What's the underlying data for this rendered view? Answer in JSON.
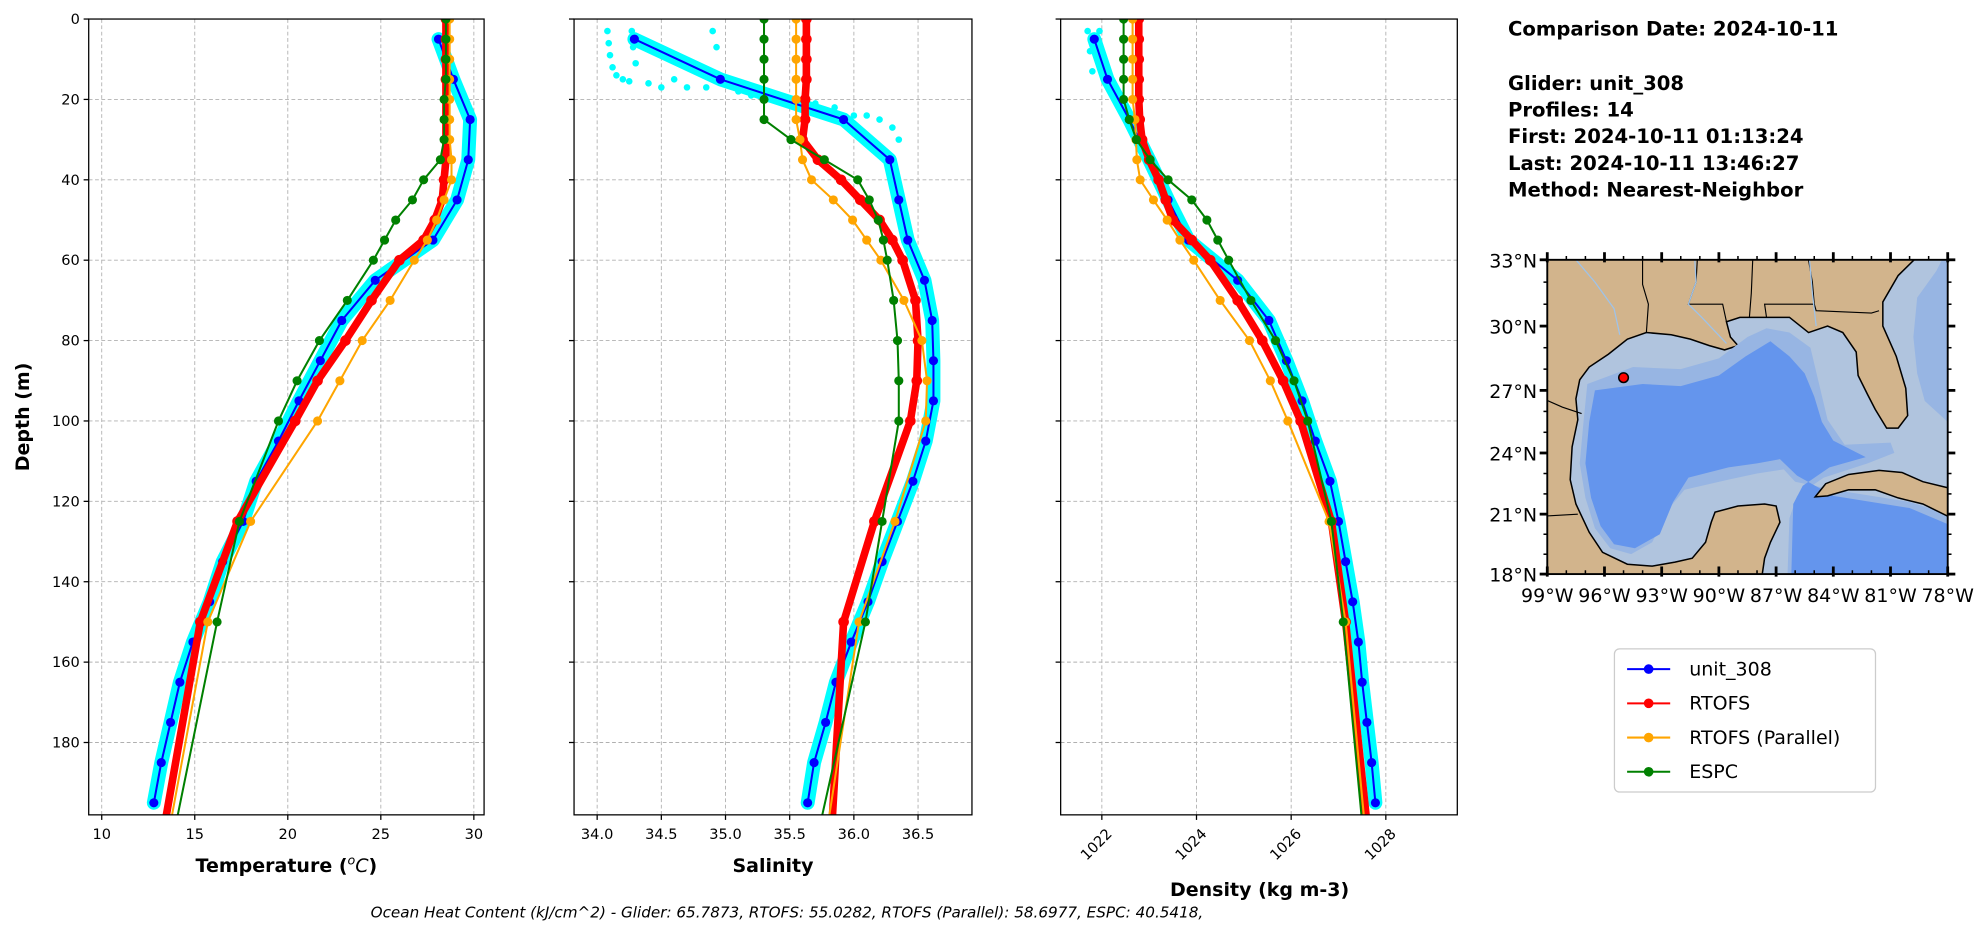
{
  "info": {
    "comparison_date": "Comparison Date: 2024-10-11",
    "glider": "Glider: unit_308",
    "profiles": "Profiles: 14",
    "first": "First: 2024-10-11 01:13:24",
    "last": "Last: 2024-10-11 13:46:27",
    "method": "Method: Nearest-Neighbor"
  },
  "ohc_text": "Ocean Heat Content (kJ/cm^2) - Glider: 65.7873,  RTOFS: 55.0282,  RTOFS (Parallel): 58.6977,  ESPC: 40.5418,",
  "legend": [
    {
      "label": "unit_308",
      "color": "#0000ff"
    },
    {
      "label": "RTOFS",
      "color": "#ff0000"
    },
    {
      "label": "RTOFS (Parallel)",
      "color": "#ffa500"
    },
    {
      "label": "ESPC",
      "color": "#008000"
    }
  ],
  "colors": {
    "glider_raw": "#00ffff",
    "grid": "#b0b0b0",
    "land": "#d2b48c",
    "shelf": "#b0c4de",
    "slope": "#97b5e3",
    "deep": "#6495ed"
  },
  "chart_data": [
    {
      "type": "line",
      "panel": "temperature",
      "xlabel_prefix": "Temperature (",
      "xlabel_sup": "o",
      "xlabel_unit": "C",
      "xlabel_suffix": ")",
      "ylabel": "Depth (m)",
      "xlim": [
        9.3,
        30.55
      ],
      "ylim": [
        198,
        0
      ],
      "xticks": [
        10,
        15,
        20,
        25,
        30
      ],
      "xtick_labels": [
        "10",
        "15",
        "20",
        "25",
        "30"
      ],
      "yticks": [
        0,
        20,
        40,
        60,
        80,
        100,
        120,
        140,
        160,
        180
      ],
      "ytick_labels": [
        "0",
        "20",
        "40",
        "60",
        "80",
        "100",
        "120",
        "140",
        "160",
        "180"
      ],
      "grid": true,
      "glider_depth": [
        5,
        15,
        25,
        35,
        45,
        55,
        65,
        75,
        85,
        95,
        105,
        115,
        125,
        135,
        145,
        155,
        165,
        175,
        185,
        195
      ],
      "model_depth": [
        0,
        5,
        10,
        15,
        20,
        25,
        30,
        35,
        40,
        45,
        50,
        55,
        60,
        70,
        80,
        90,
        100,
        125,
        150,
        200
      ],
      "series": [
        {
          "name": "unit_308",
          "values": [
            28.1,
            28.9,
            29.8,
            29.7,
            29.1,
            27.8,
            24.7,
            22.9,
            21.75,
            20.6,
            19.5,
            18.3,
            17.6,
            16.5,
            15.8,
            14.9,
            14.2,
            13.7,
            13.2,
            12.8
          ]
        },
        {
          "name": "RTOFS",
          "values": [
            28.5,
            28.5,
            28.5,
            28.5,
            28.5,
            28.5,
            28.5,
            28.5,
            28.4,
            28.3,
            27.9,
            27.3,
            26.0,
            24.5,
            23.1,
            21.6,
            20.4,
            17.3,
            15.3,
            13.4
          ]
        },
        {
          "name": "RTOFS (Parallel)",
          "values": [
            28.7,
            28.7,
            28.7,
            28.7,
            28.7,
            28.7,
            28.7,
            28.8,
            28.8,
            28.4,
            28.0,
            27.5,
            26.8,
            25.5,
            24.0,
            22.8,
            21.6,
            18.0,
            15.7,
            13.7
          ]
        },
        {
          "name": "ESPC",
          "values": [
            28.5,
            28.5,
            28.5,
            28.5,
            28.4,
            28.4,
            28.4,
            28.2,
            27.3,
            26.7,
            25.8,
            25.2,
            24.6,
            23.2,
            21.7,
            20.5,
            19.5,
            17.4,
            16.2,
            14.0
          ]
        }
      ],
      "glider_raw_extra": []
    },
    {
      "type": "line",
      "panel": "salinity",
      "xlabel": "Salinity",
      "xlim": [
        33.82,
        36.92
      ],
      "ylim": [
        198,
        0
      ],
      "xticks": [
        34.0,
        34.5,
        35.0,
        35.5,
        36.0,
        36.5
      ],
      "xtick_labels": [
        "34.0",
        "34.5",
        "35.0",
        "35.5",
        "36.0",
        "36.5"
      ],
      "yticks": [
        0,
        20,
        40,
        60,
        80,
        100,
        120,
        140,
        160,
        180
      ],
      "grid": true,
      "glider_depth": [
        5,
        15,
        25,
        35,
        45,
        55,
        65,
        75,
        85,
        95,
        105,
        115,
        125,
        135,
        145,
        155,
        165,
        175,
        185,
        195
      ],
      "model_depth": [
        0,
        5,
        10,
        15,
        20,
        25,
        30,
        35,
        40,
        45,
        50,
        55,
        60,
        70,
        80,
        90,
        100,
        125,
        150,
        200
      ],
      "series": [
        {
          "name": "unit_308",
          "values": [
            34.29,
            34.96,
            35.92,
            36.28,
            36.35,
            36.42,
            36.55,
            36.61,
            36.62,
            36.62,
            36.56,
            36.46,
            36.34,
            36.22,
            36.11,
            35.98,
            35.86,
            35.78,
            35.69,
            35.64
          ]
        },
        {
          "name": "RTOFS",
          "values": [
            35.63,
            35.63,
            35.63,
            35.63,
            35.62,
            35.62,
            35.6,
            35.72,
            35.9,
            36.05,
            36.2,
            36.3,
            36.38,
            36.48,
            36.5,
            36.49,
            36.44,
            36.16,
            35.92,
            35.83
          ]
        },
        {
          "name": "RTOFS (Parallel)",
          "values": [
            35.55,
            35.55,
            35.55,
            35.55,
            35.55,
            35.55,
            35.58,
            35.6,
            35.67,
            35.84,
            35.99,
            36.1,
            36.21,
            36.39,
            36.53,
            36.57,
            36.56,
            36.32,
            36.04,
            35.8
          ]
        },
        {
          "name": "ESPC",
          "values": [
            35.3,
            35.3,
            35.3,
            35.3,
            35.3,
            35.3,
            35.51,
            35.77,
            36.03,
            36.12,
            36.19,
            36.23,
            36.26,
            36.31,
            36.34,
            36.35,
            36.35,
            36.22,
            36.09,
            35.74
          ]
        }
      ],
      "glider_raw_extra": [
        [
          34.08,
          3
        ],
        [
          34.09,
          6
        ],
        [
          34.1,
          9
        ],
        [
          34.12,
          12
        ],
        [
          34.15,
          14
        ],
        [
          34.2,
          15
        ],
        [
          34.25,
          15.5
        ],
        [
          34.27,
          3
        ],
        [
          34.28,
          7
        ],
        [
          34.3,
          11
        ],
        [
          34.4,
          16
        ],
        [
          34.5,
          17
        ],
        [
          34.6,
          15
        ],
        [
          34.7,
          17
        ],
        [
          34.85,
          17
        ],
        [
          34.9,
          3
        ],
        [
          34.93,
          7
        ],
        [
          35.0,
          16
        ],
        [
          35.1,
          18
        ],
        [
          35.2,
          19
        ],
        [
          35.3,
          18
        ],
        [
          35.4,
          20
        ],
        [
          35.55,
          20
        ],
        [
          35.7,
          21
        ],
        [
          35.85,
          22
        ],
        [
          36.0,
          24
        ],
        [
          36.1,
          24
        ],
        [
          36.2,
          25
        ],
        [
          36.3,
          27
        ],
        [
          36.35,
          30
        ]
      ]
    },
    {
      "type": "line",
      "panel": "density",
      "xlabel": "Density (kg m-3)",
      "xlim": [
        1021.13,
        1029.51
      ],
      "ylim": [
        198,
        0
      ],
      "xticks": [
        1022,
        1024,
        1026,
        1028
      ],
      "xtick_labels": [
        "1022",
        "1024",
        "1026",
        "1028"
      ],
      "yticks": [
        0,
        20,
        40,
        60,
        80,
        100,
        120,
        140,
        160,
        180
      ],
      "grid": true,
      "glider_depth": [
        5,
        15,
        25,
        35,
        45,
        55,
        65,
        75,
        85,
        95,
        105,
        115,
        125,
        135,
        145,
        155,
        165,
        175,
        185,
        195
      ],
      "model_depth": [
        0,
        5,
        10,
        15,
        20,
        25,
        30,
        35,
        40,
        45,
        50,
        55,
        60,
        70,
        80,
        90,
        100,
        125,
        150,
        200
      ],
      "series": [
        {
          "name": "unit_308",
          "values": [
            1021.84,
            1022.12,
            1022.58,
            1023.0,
            1023.4,
            1023.83,
            1024.87,
            1025.53,
            1025.9,
            1026.23,
            1026.51,
            1026.82,
            1027.0,
            1027.15,
            1027.3,
            1027.42,
            1027.5,
            1027.6,
            1027.7,
            1027.78
          ]
        },
        {
          "name": "RTOFS",
          "values": [
            1022.78,
            1022.78,
            1022.78,
            1022.78,
            1022.78,
            1022.8,
            1022.85,
            1023.0,
            1023.2,
            1023.35,
            1023.5,
            1023.9,
            1024.29,
            1024.87,
            1025.39,
            1025.83,
            1026.2,
            1026.85,
            1027.15,
            1027.6
          ]
        },
        {
          "name": "RTOFS (Parallel)",
          "values": [
            1022.65,
            1022.65,
            1022.65,
            1022.65,
            1022.65,
            1022.7,
            1022.72,
            1022.74,
            1022.81,
            1023.09,
            1023.38,
            1023.65,
            1023.94,
            1024.5,
            1025.12,
            1025.56,
            1025.93,
            1026.8,
            1027.15,
            1027.55
          ]
        },
        {
          "name": "ESPC",
          "values": [
            1022.46,
            1022.46,
            1022.46,
            1022.46,
            1022.46,
            1022.58,
            1022.73,
            1023.02,
            1023.4,
            1023.9,
            1024.22,
            1024.45,
            1024.68,
            1025.15,
            1025.67,
            1026.06,
            1026.35,
            1026.85,
            1027.1,
            1027.5
          ]
        }
      ],
      "glider_raw_extra": [
        [
          1021.7,
          3
        ],
        [
          1021.75,
          8
        ],
        [
          1021.8,
          13
        ],
        [
          1021.95,
          3
        ],
        [
          1022.0,
          9
        ]
      ]
    }
  ],
  "map": {
    "lon_range": [
      -99,
      -78
    ],
    "lat_range": [
      18,
      33
    ],
    "lon_ticks": [
      -99,
      -96,
      -93,
      -90,
      -87,
      -84,
      -81,
      -78
    ],
    "lon_labels": [
      "99°W",
      "96°W",
      "93°W",
      "90°W",
      "87°W",
      "84°W",
      "81°W",
      "78°W"
    ],
    "lat_ticks": [
      33,
      30,
      27,
      24,
      21,
      18
    ],
    "lat_labels": [
      "33°N",
      "30°N",
      "27°N",
      "24°N",
      "21°N",
      "18°N"
    ],
    "glider_position": [
      -95.0,
      27.6
    ]
  }
}
